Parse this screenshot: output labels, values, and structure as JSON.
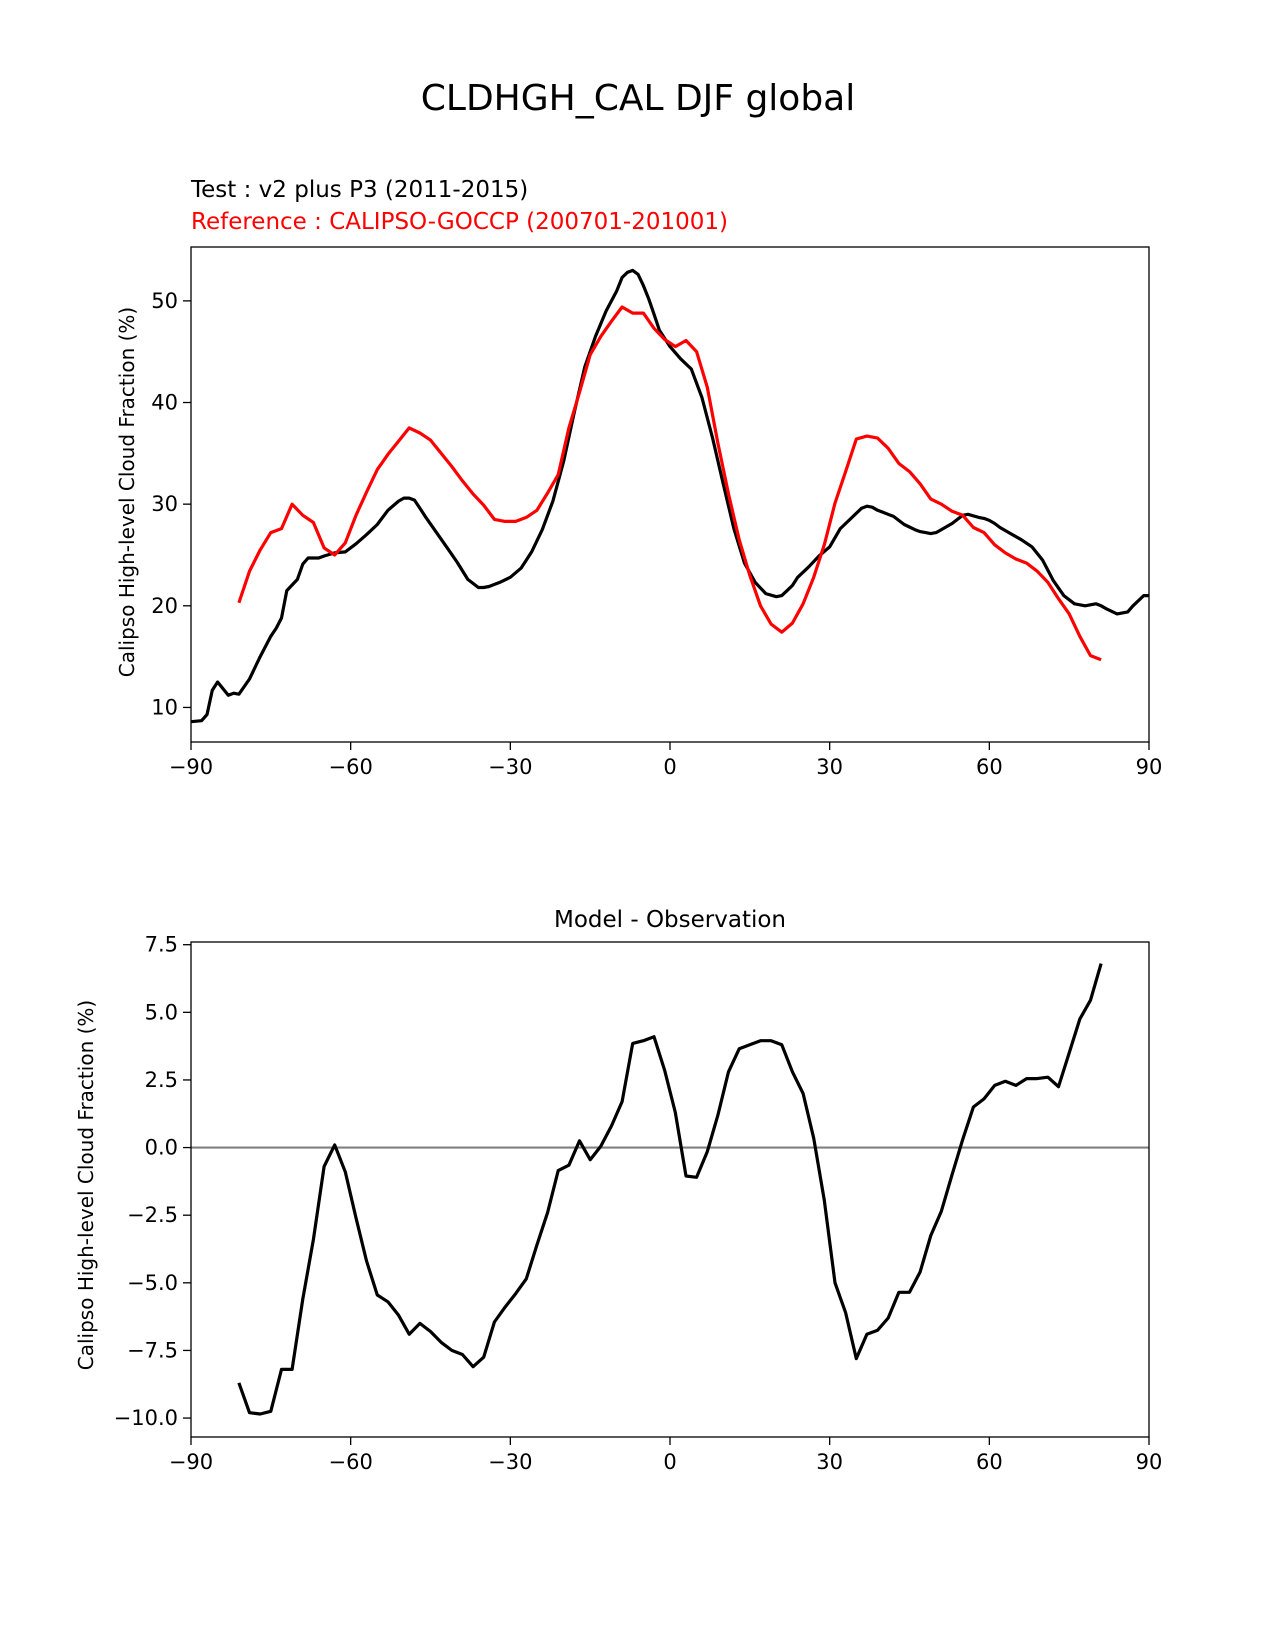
{
  "figure": {
    "title": "CLDHGH_CAL DJF global"
  },
  "chart_data": [
    {
      "type": "line",
      "test_label": "Test : v2 plus P3 (2011-2015)",
      "reference_label": "Reference : CALIPSO-GOCCP (200701-201001)",
      "ylabel": "Calipso High-level Cloud Fraction (%)",
      "xlabel": "",
      "xlim": [
        -90,
        90
      ],
      "ylim": [
        6.6,
        55.3
      ],
      "xticks": [
        -90,
        -60,
        -30,
        0,
        30,
        60,
        90
      ],
      "xtick_labels": [
        "−90",
        "−60",
        "−30",
        "0",
        "30",
        "60",
        "90"
      ],
      "yticks": [
        10,
        20,
        30,
        40,
        50
      ],
      "ytick_labels": [
        "10",
        "20",
        "30",
        "40",
        "50"
      ],
      "colors": {
        "test": "#000000",
        "reference": "#ff0000"
      },
      "series": [
        {
          "role": "test",
          "x": [
            -90,
            -88,
            -87,
            -86,
            -85,
            -83,
            -82,
            -81,
            -79,
            -77,
            -75,
            -74,
            -73,
            -72,
            -70,
            -69,
            -68,
            -66,
            -65,
            -63,
            -61,
            -59,
            -57,
            -55,
            -53,
            -51,
            -50,
            -49,
            -48,
            -47,
            -46,
            -44,
            -42,
            -40,
            -38,
            -36,
            -35,
            -34,
            -32,
            -30,
            -28,
            -27,
            -26,
            -24,
            -22,
            -20,
            -18,
            -16,
            -14,
            -12,
            -10,
            -9,
            -8,
            -7,
            -6,
            -5,
            -4,
            -3,
            -2,
            0,
            2,
            4,
            6,
            8,
            10,
            12,
            14,
            16,
            18,
            20,
            21,
            22,
            23,
            24,
            26,
            28,
            30,
            32,
            34,
            36,
            37,
            38,
            39,
            40,
            42,
            44,
            46,
            47,
            48,
            49,
            50,
            51,
            52,
            53,
            54,
            55,
            56,
            58,
            59,
            60,
            61,
            62,
            64,
            66,
            68,
            70,
            72,
            74,
            76,
            78,
            80,
            81,
            82,
            84,
            86,
            87,
            88,
            89,
            90
          ],
          "y": [
            8.6,
            8.7,
            9.3,
            11.7,
            12.5,
            11.2,
            11.4,
            11.3,
            12.8,
            15.0,
            17.0,
            17.8,
            18.8,
            21.5,
            22.6,
            24.1,
            24.7,
            24.7,
            24.9,
            25.2,
            25.3,
            26.1,
            27.0,
            28.0,
            29.4,
            30.3,
            30.6,
            30.6,
            30.4,
            29.6,
            28.8,
            27.3,
            25.8,
            24.3,
            22.6,
            21.8,
            21.8,
            21.9,
            22.3,
            22.8,
            23.7,
            24.5,
            25.3,
            27.5,
            30.3,
            34.2,
            39.0,
            43.5,
            46.5,
            49.0,
            51.0,
            52.3,
            52.8,
            53.0,
            52.6,
            51.5,
            50.2,
            48.7,
            47.1,
            45.5,
            44.3,
            43.3,
            40.5,
            36.5,
            32.0,
            27.6,
            24.2,
            22.3,
            21.2,
            20.9,
            21.0,
            21.5,
            22.0,
            22.8,
            23.8,
            24.9,
            25.8,
            27.6,
            28.6,
            29.6,
            29.8,
            29.7,
            29.4,
            29.2,
            28.8,
            28.0,
            27.5,
            27.3,
            27.2,
            27.1,
            27.2,
            27.5,
            27.8,
            28.1,
            28.5,
            28.9,
            29.0,
            28.7,
            28.6,
            28.4,
            28.1,
            27.7,
            27.1,
            26.5,
            25.8,
            24.5,
            22.5,
            21.0,
            20.2,
            20.0,
            20.2,
            20.0,
            19.7,
            19.2,
            19.4,
            20.0,
            20.5,
            21.0,
            21.0
          ]
        },
        {
          "role": "reference",
          "x": [
            -81,
            -79,
            -77,
            -75,
            -73,
            -71,
            -69,
            -67,
            -65,
            -63,
            -61,
            -59,
            -57,
            -55,
            -53,
            -51,
            -49,
            -47,
            -45,
            -43,
            -41,
            -39,
            -37,
            -35,
            -33,
            -31,
            -29,
            -27,
            -25,
            -23,
            -21,
            -19,
            -17,
            -15,
            -13,
            -11,
            -9,
            -7,
            -5,
            -3,
            -1,
            1,
            3,
            5,
            7,
            9,
            11,
            13,
            15,
            17,
            19,
            21,
            23,
            25,
            27,
            29,
            31,
            33,
            35,
            37,
            39,
            41,
            43,
            45,
            47,
            49,
            51,
            53,
            55,
            57,
            59,
            61,
            63,
            65,
            67,
            69,
            71,
            73,
            75,
            77,
            79,
            81
          ],
          "y": [
            20.3,
            23.4,
            25.5,
            27.2,
            27.6,
            30.0,
            28.9,
            28.2,
            25.7,
            25.0,
            26.2,
            28.9,
            31.2,
            33.4,
            34.9,
            36.2,
            37.5,
            37.0,
            36.3,
            35.0,
            33.7,
            32.3,
            31.0,
            29.9,
            28.5,
            28.3,
            28.3,
            28.7,
            29.4,
            31.1,
            32.9,
            37.5,
            41.0,
            44.7,
            46.5,
            48.0,
            49.4,
            48.8,
            48.8,
            47.3,
            46.2,
            45.5,
            46.1,
            45.0,
            41.5,
            36.0,
            31.0,
            26.5,
            23.0,
            20.0,
            18.2,
            17.4,
            18.3,
            20.2,
            22.8,
            26.0,
            30.1,
            33.2,
            36.4,
            36.7,
            36.5,
            35.5,
            34.0,
            33.2,
            32.0,
            30.5,
            30.0,
            29.3,
            28.9,
            27.7,
            27.2,
            26.0,
            25.2,
            24.6,
            24.2,
            23.4,
            22.3,
            20.7,
            19.2,
            17.0,
            15.1,
            14.7
          ]
        }
      ]
    },
    {
      "type": "line",
      "title": "Model - Observation",
      "ylabel": "Calipso High-level Cloud Fraction (%)",
      "xlabel": "",
      "xlim": [
        -90,
        90
      ],
      "ylim": [
        -10.7,
        7.6
      ],
      "xticks": [
        -90,
        -60,
        -30,
        0,
        30,
        60,
        90
      ],
      "xtick_labels": [
        "−90",
        "−60",
        "−30",
        "0",
        "30",
        "60",
        "90"
      ],
      "yticks": [
        -10.0,
        -7.5,
        -5.0,
        -2.5,
        0.0,
        2.5,
        5.0,
        7.5
      ],
      "ytick_labels": [
        "−10.0",
        "−7.5",
        "−5.0",
        "−2.5",
        "0.0",
        "2.5",
        "5.0",
        "7.5"
      ],
      "zero_line": 0,
      "colors": {
        "diff": "#000000",
        "zero_line": "#808080"
      },
      "series": [
        {
          "role": "diff",
          "x": [
            -81,
            -79,
            -77,
            -75,
            -73,
            -71,
            -69,
            -67,
            -65,
            -63,
            -61,
            -59,
            -57,
            -55,
            -53,
            -51,
            -49,
            -47,
            -45,
            -43,
            -41,
            -39,
            -37,
            -35,
            -33,
            -31,
            -29,
            -27,
            -25,
            -23,
            -21,
            -19,
            -17,
            -15,
            -13,
            -11,
            -9,
            -7,
            -5,
            -3,
            -1,
            1,
            3,
            5,
            7,
            9,
            11,
            13,
            15,
            17,
            19,
            21,
            23,
            25,
            27,
            29,
            31,
            33,
            35,
            37,
            39,
            41,
            43,
            45,
            47,
            49,
            51,
            53,
            55,
            57,
            59,
            61,
            63,
            65,
            67,
            69,
            71,
            73,
            75,
            77,
            79,
            81
          ],
          "y": [
            -8.7,
            -9.8,
            -9.85,
            -9.75,
            -8.2,
            -8.2,
            -5.6,
            -3.4,
            -0.7,
            0.1,
            -0.9,
            -2.6,
            -4.2,
            -5.45,
            -5.7,
            -6.2,
            -6.9,
            -6.5,
            -6.8,
            -7.2,
            -7.5,
            -7.65,
            -8.1,
            -7.75,
            -6.45,
            -5.9,
            -5.4,
            -4.85,
            -3.6,
            -2.4,
            -0.85,
            -0.65,
            0.25,
            -0.45,
            0.05,
            0.8,
            1.7,
            3.85,
            3.95,
            4.1,
            2.85,
            1.3,
            -1.05,
            -1.1,
            -0.15,
            1.2,
            2.8,
            3.65,
            3.8,
            3.95,
            3.95,
            3.8,
            2.8,
            2.0,
            0.35,
            -1.95,
            -5.0,
            -6.1,
            -7.8,
            -6.9,
            -6.75,
            -6.3,
            -5.35,
            -5.35,
            -4.6,
            -3.25,
            -2.35,
            -1.0,
            0.3,
            1.5,
            1.8,
            2.3,
            2.45,
            2.3,
            2.55,
            2.55,
            2.6,
            2.25,
            3.5,
            4.75,
            5.45,
            6.8
          ]
        }
      ]
    }
  ]
}
